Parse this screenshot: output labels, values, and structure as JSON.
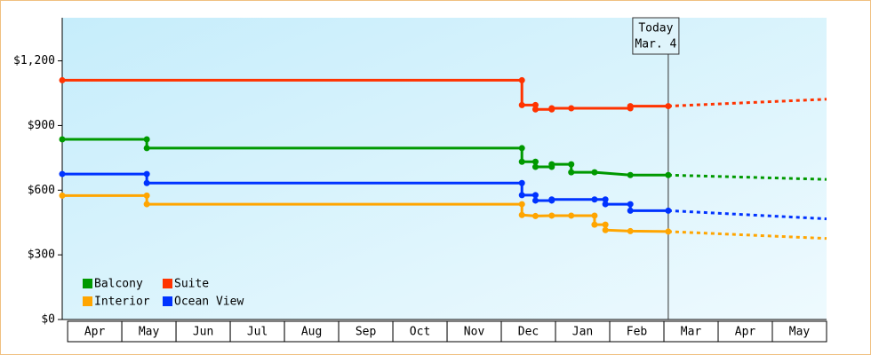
{
  "chart_data": {
    "type": "line",
    "xlim": [
      -0.1,
      14
    ],
    "ylim": [
      0,
      1400
    ],
    "yticks": [
      {
        "value": 0,
        "label": "$0"
      },
      {
        "value": 300,
        "label": "$300"
      },
      {
        "value": 600,
        "label": "$600"
      },
      {
        "value": 900,
        "label": "$900"
      },
      {
        "value": 1200,
        "label": "$1,200"
      }
    ],
    "xticks": [
      {
        "value": 0.5,
        "label": "Apr"
      },
      {
        "value": 1.5,
        "label": "May"
      },
      {
        "value": 2.5,
        "label": "Jun"
      },
      {
        "value": 3.5,
        "label": "Jul"
      },
      {
        "value": 4.5,
        "label": "Aug"
      },
      {
        "value": 5.5,
        "label": "Sep"
      },
      {
        "value": 6.5,
        "label": "Oct"
      },
      {
        "value": 7.5,
        "label": "Nov"
      },
      {
        "value": 8.5,
        "label": "Dec"
      },
      {
        "value": 9.5,
        "label": "Jan"
      },
      {
        "value": 10.5,
        "label": "Feb"
      },
      {
        "value": 11.5,
        "label": "Mar"
      },
      {
        "value": 12.5,
        "label": "Apr"
      },
      {
        "value": 13.5,
        "label": "May"
      }
    ],
    "annotation": {
      "x": 11.08,
      "lines": [
        "Today",
        "Mar. 4"
      ]
    },
    "series": [
      {
        "name": "Balcony",
        "color": "#009900",
        "x": [
          -0.1,
          1.46,
          1.46,
          8.38,
          8.38,
          8.63,
          8.63,
          8.93,
          8.93,
          9.29,
          9.29,
          9.72,
          10.38,
          11.08
        ],
        "values": [
          836,
          836,
          795,
          795,
          732,
          732,
          708,
          708,
          720,
          720,
          683,
          683,
          670,
          670
        ],
        "forecast": {
          "x": [
            11.08,
            14
          ],
          "values": [
            670,
            650
          ]
        }
      },
      {
        "name": "Suite",
        "color": "#ff3300",
        "x": [
          -0.1,
          8.38,
          8.38,
          8.63,
          8.63,
          8.93,
          8.93,
          9.29,
          10.38,
          10.38,
          11.08
        ],
        "values": [
          1110,
          1110,
          995,
          995,
          975,
          975,
          980,
          980,
          980,
          990,
          990
        ],
        "forecast": {
          "x": [
            11.08,
            14
          ],
          "values": [
            990,
            1022
          ]
        }
      },
      {
        "name": "Interior",
        "color": "#ffa500",
        "x": [
          -0.1,
          1.46,
          1.46,
          8.38,
          8.38,
          8.63,
          8.93,
          9.29,
          9.72,
          9.72,
          9.92,
          9.92,
          10.38,
          11.08
        ],
        "values": [
          575,
          575,
          535,
          535,
          485,
          480,
          482,
          482,
          482,
          440,
          440,
          415,
          410,
          408
        ],
        "forecast": {
          "x": [
            11.08,
            14
          ],
          "values": [
            408,
            376
          ]
        }
      },
      {
        "name": "Ocean View",
        "color": "#0033ff",
        "x": [
          -0.1,
          1.46,
          1.46,
          8.38,
          8.38,
          8.63,
          8.63,
          8.93,
          8.93,
          9.72,
          9.92,
          9.92,
          10.38,
          10.38,
          11.08
        ],
        "values": [
          675,
          675,
          633,
          633,
          577,
          577,
          552,
          552,
          557,
          557,
          557,
          535,
          535,
          505,
          505
        ],
        "forecast": {
          "x": [
            11.08,
            14
          ],
          "values": [
            505,
            467
          ]
        }
      }
    ]
  }
}
